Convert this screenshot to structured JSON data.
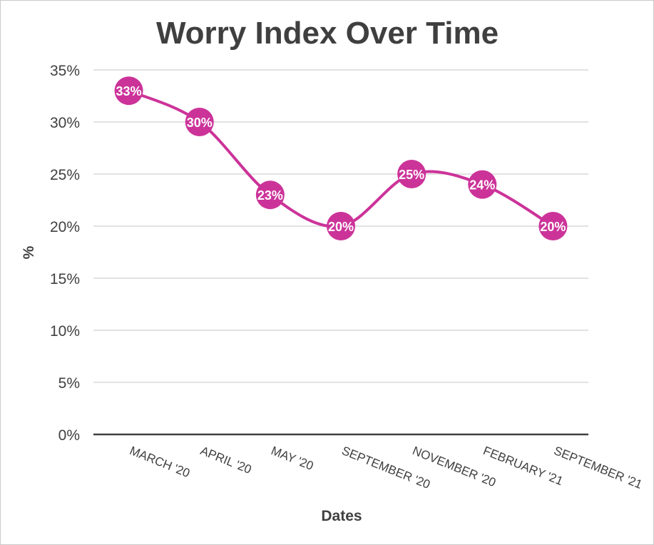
{
  "chart_data": {
    "type": "line",
    "title": "Worry Index Over Time",
    "xlabel": "Dates",
    "ylabel": "%",
    "categories": [
      "MARCH '20",
      "APRIL '20",
      "MAY '20",
      "SEPTEMBER '20",
      "NOVEMBER '20",
      "FEBRUARY '21",
      "SEPTEMBER '21"
    ],
    "values": [
      33,
      30,
      23,
      20,
      25,
      24,
      20
    ],
    "value_labels": [
      "33%",
      "30%",
      "23%",
      "20%",
      "25%",
      "24%",
      "20%"
    ],
    "yticks": [
      "0%",
      "5%",
      "10%",
      "15%",
      "20%",
      "25%",
      "30%",
      "35%"
    ],
    "ylim": [
      0,
      35
    ],
    "grid": true,
    "smooth": true,
    "line_color": "#cc3399",
    "marker_color": "#cc3399",
    "label_color": "#ffffff"
  }
}
